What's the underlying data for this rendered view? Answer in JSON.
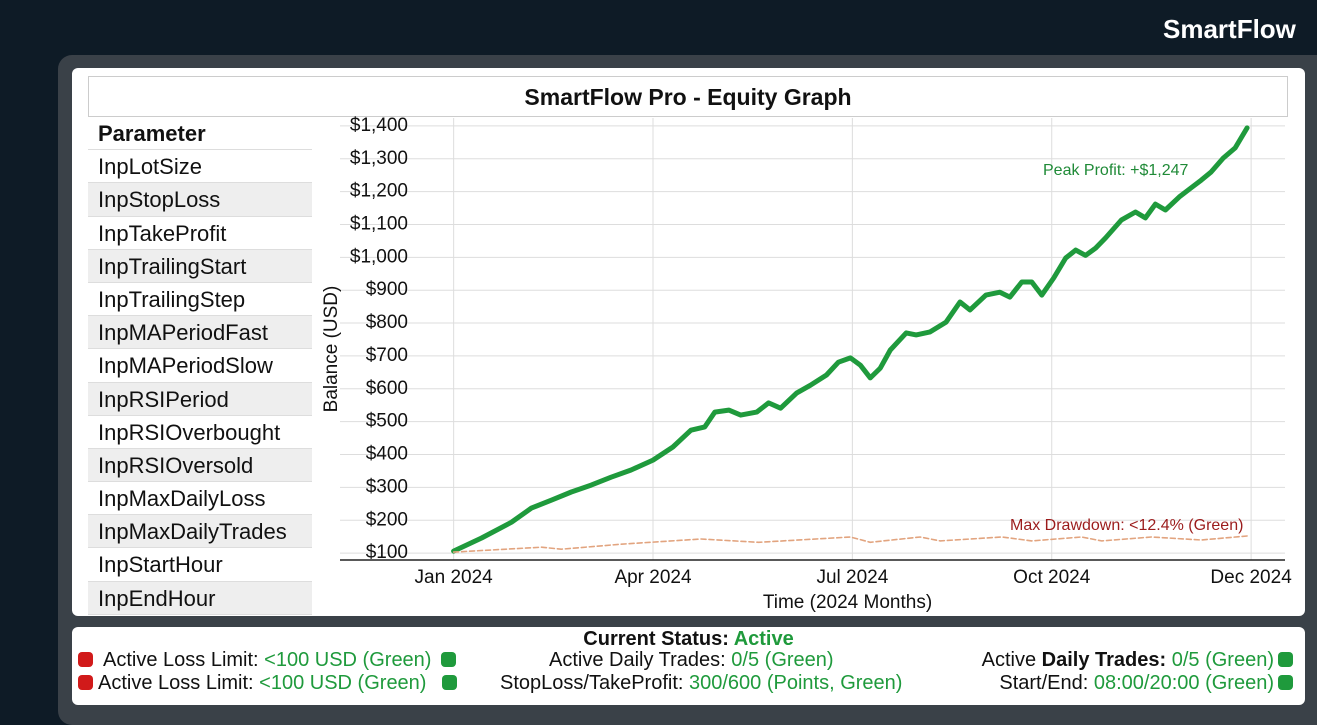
{
  "header": {
    "title": "SmartFlow"
  },
  "panel": {
    "title": "SmartFlow Pro - Equity Graph"
  },
  "parameters": {
    "header": "Parameter",
    "rows": [
      "InpLotSize",
      "InpStopLoss",
      "InpTakeProfit",
      "InpTrailingStart",
      "InpTrailingStep",
      "InpMAPeriodFast",
      "InpMAPeriodSlow",
      "InpRSIPeriod",
      "InpRSIOverbought",
      "InpRSIOversold",
      "InpMaxDailyLoss",
      "InpMaxDailyTrades",
      "InpStartHour",
      "InpEndHour"
    ]
  },
  "chart_data": {
    "type": "line",
    "y_label": "Balance (USD)",
    "x_label": "Time (2024 Months)",
    "grid": true,
    "xlim": [
      -0.57,
      4.17
    ],
    "xticks": [
      {
        "value": 0,
        "label": "Jan 2024"
      },
      {
        "value": 1,
        "label": "Apr 2024"
      },
      {
        "value": 2,
        "label": "Jul 2024"
      },
      {
        "value": 3,
        "label": "Oct 2024"
      },
      {
        "value": 4,
        "label": "Dec 2024"
      }
    ],
    "ylim": [
      79,
      1424
    ],
    "yticks": [
      {
        "value": 100,
        "label": "$100"
      },
      {
        "value": 200,
        "label": "$200"
      },
      {
        "value": 300,
        "label": "$300"
      },
      {
        "value": 400,
        "label": "$400"
      },
      {
        "value": 500,
        "label": "$500"
      },
      {
        "value": 600,
        "label": "$600"
      },
      {
        "value": 700,
        "label": "$700"
      },
      {
        "value": 800,
        "label": "$800"
      },
      {
        "value": 900,
        "label": "$900"
      },
      {
        "value": 1000,
        "label": "$1,000"
      },
      {
        "value": 1100,
        "label": "$1,100"
      },
      {
        "value": 1200,
        "label": "$1,200"
      },
      {
        "value": 1300,
        "label": "$1,300"
      },
      {
        "value": 1400,
        "label": "$1,400"
      }
    ],
    "series": [
      {
        "color": "#1f9a3c",
        "x": [
          0,
          0.14,
          0.29,
          0.39,
          0.49,
          0.59,
          0.69,
          0.79,
          0.89,
          1.0,
          1.1,
          1.19,
          1.26,
          1.31,
          1.38,
          1.44,
          1.52,
          1.58,
          1.64,
          1.72,
          1.79,
          1.87,
          1.93,
          1.99,
          2.04,
          2.09,
          2.14,
          2.19,
          2.27,
          2.32,
          2.39,
          2.47,
          2.54,
          2.59,
          2.67,
          2.74,
          2.79,
          2.85,
          2.9,
          2.95,
          3.01,
          3.07,
          3.12,
          3.17,
          3.22,
          3.27,
          3.35,
          3.42,
          3.47,
          3.52,
          3.57,
          3.64,
          3.7,
          3.75,
          3.8,
          3.86,
          3.92,
          3.98
        ],
        "values": [
          106,
          146,
          194,
          237,
          261,
          286,
          307,
          331,
          353,
          383,
          423,
          474,
          484,
          529,
          535,
          520,
          529,
          557,
          541,
          587,
          611,
          642,
          681,
          694,
          672,
          633,
          663,
          718,
          770,
          764,
          773,
          803,
          864,
          840,
          885,
          894,
          879,
          925,
          925,
          885,
          937,
          998,
          1022,
          1006,
          1028,
          1059,
          1114,
          1138,
          1120,
          1162,
          1144,
          1184,
          1212,
          1235,
          1260,
          1302,
          1333,
          1394
        ]
      },
      {
        "color": "#e2a47f",
        "dashed": true,
        "x": [
          0,
          0.44,
          0.54,
          0.84,
          1.24,
          1.53,
          1.99,
          2.09,
          2.34,
          2.44,
          2.75,
          2.9,
          3.15,
          3.25,
          3.5,
          3.75,
          3.98
        ],
        "values": [
          103,
          118,
          112,
          127,
          143,
          133,
          149,
          133,
          149,
          137,
          149,
          137,
          149,
          137,
          149,
          140,
          152
        ]
      }
    ],
    "annotations": [
      {
        "text": "Peak Profit: +$1,247",
        "color": "#1f8a37"
      },
      {
        "text": "Max Drawdown: <12.4% (Green)",
        "color": "#9b1c1c"
      }
    ]
  },
  "status": {
    "label": "Current Status:",
    "value": "Active",
    "rows": [
      [
        {
          "label": "Active Loss Limit:",
          "value": "<100 USD (Green)"
        },
        {
          "label": "Active Daily Trades:",
          "value": "0/5 (Green)"
        },
        {
          "label": "Active",
          "label_bold": "Daily Trades:",
          "value": "0/5 (Green)"
        }
      ],
      [
        {
          "label": "Active Loss Limit:",
          "value": "<100 USD (Green)"
        },
        {
          "label": "StopLoss/TakeProfit:",
          "value": "300/600 (Points, Green)"
        },
        {
          "label": "Start/End:",
          "value": "08:00/20:00 (Green)"
        }
      ]
    ]
  }
}
